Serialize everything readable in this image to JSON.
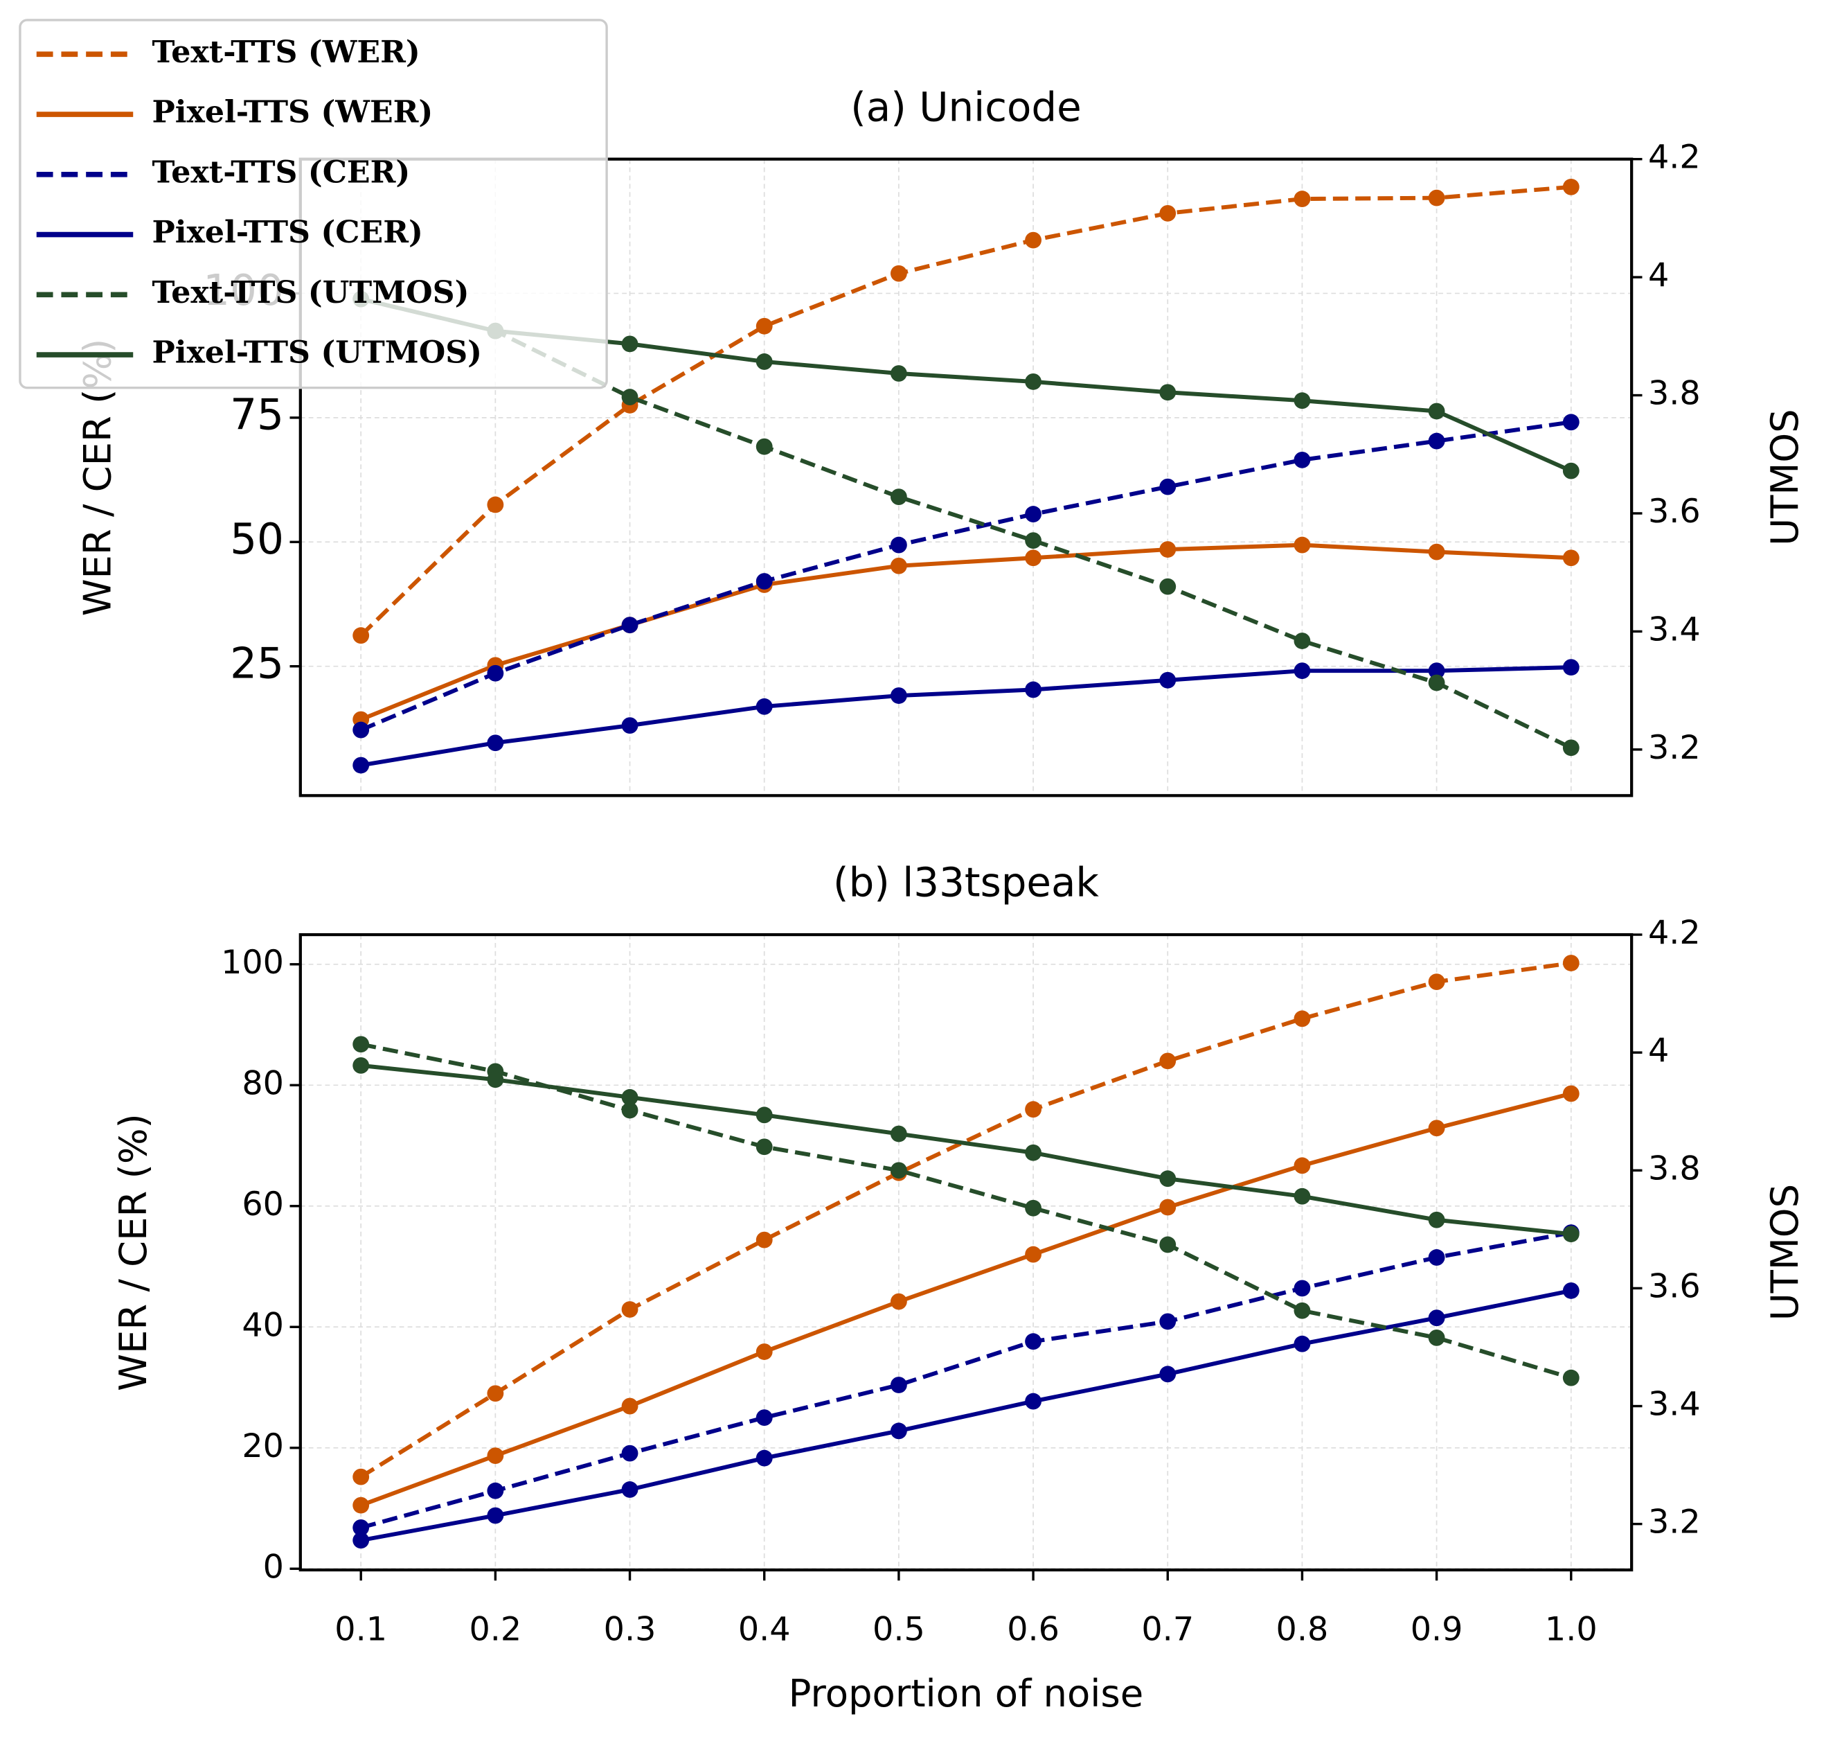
{
  "chart_data": [
    {
      "type": "line",
      "title": "(a) Unicode",
      "ylabel": "WER / CER (%)",
      "y2label": "UTMOS",
      "x": [
        0.1,
        0.2,
        0.3,
        0.4,
        0.5,
        0.6,
        0.7,
        0.8,
        0.9,
        1.0
      ],
      "xlim": [
        0.055,
        1.045
      ],
      "ylim": [
        -1,
        127
      ],
      "yticks": [
        25,
        50,
        75,
        100
      ],
      "y2lim": [
        3.122,
        4.2
      ],
      "y2ticks": [
        3.2,
        3.4,
        3.6,
        3.8,
        4.0,
        4.2
      ],
      "grid": true,
      "legend": "upper left",
      "series": [
        {
          "name": "Text-TTS (WER)",
          "color": "#cc5500",
          "linestyle": "dashed",
          "values": [
            31.2,
            57.5,
            77.5,
            93.4,
            104.0,
            110.7,
            116.1,
            119.0,
            119.2,
            121.4
          ]
        },
        {
          "name": "Pixel-TTS (WER)",
          "color": "#cc5500",
          "linestyle": "solid",
          "values": [
            14.3,
            25.2,
            33.3,
            41.4,
            45.2,
            46.8,
            48.5,
            49.4,
            48.0,
            46.8
          ]
        },
        {
          "name": "Text-TTS (CER)",
          "color": "#00008b",
          "linestyle": "dashed",
          "values": [
            12.2,
            23.6,
            33.3,
            42.1,
            49.4,
            55.6,
            61.1,
            66.5,
            70.3,
            74.1
          ]
        },
        {
          "name": "Pixel-TTS (CER)",
          "color": "#00008b",
          "linestyle": "solid",
          "values": [
            5.1,
            9.6,
            13.1,
            16.9,
            19.1,
            20.3,
            22.2,
            24.1,
            24.1,
            24.8
          ]
        },
        {
          "name": "Text-TTS (UTMOS)",
          "color": "#264d2a",
          "linestyle": "dashed",
          "axis": "y2",
          "values": [
            3.963,
            3.909,
            3.797,
            3.713,
            3.628,
            3.554,
            3.476,
            3.384,
            3.313,
            3.203
          ]
        },
        {
          "name": "Pixel-TTS (UTMOS)",
          "color": "#264d2a",
          "linestyle": "solid",
          "axis": "y2",
          "values": [
            3.963,
            3.909,
            3.887,
            3.857,
            3.837,
            3.823,
            3.805,
            3.791,
            3.773,
            3.672
          ]
        }
      ]
    },
    {
      "type": "line",
      "title": "(b) l33tspeak",
      "ylabel": "WER / CER (%)",
      "y2label": "UTMOS",
      "xlabel": "Proportion of noise",
      "x": [
        0.1,
        0.2,
        0.3,
        0.4,
        0.5,
        0.6,
        0.7,
        0.8,
        0.9,
        1.0
      ],
      "xlim": [
        0.055,
        1.045
      ],
      "xticks": [
        0.1,
        0.2,
        0.3,
        0.4,
        0.5,
        0.6,
        0.7,
        0.8,
        0.9,
        {
          "value": 1.0,
          "label": "1.0"
        }
      ],
      "ylim": [
        -0.2,
        104.9
      ],
      "yticks": [
        0,
        20,
        40,
        60,
        80,
        100
      ],
      "y2lim": [
        3.122,
        4.2
      ],
      "y2ticks": [
        3.2,
        3.4,
        3.6,
        3.8,
        4.0,
        4.2
      ],
      "grid": true,
      "series": [
        {
          "color": "#cc5500",
          "linestyle": "dashed",
          "values": [
            15.2,
            29.0,
            42.9,
            54.4,
            65.5,
            76.0,
            84.0,
            91.0,
            97.1,
            100.2
          ]
        },
        {
          "color": "#cc5500",
          "linestyle": "solid",
          "values": [
            10.5,
            18.7,
            26.9,
            35.9,
            44.2,
            52.0,
            59.8,
            66.7,
            72.9,
            78.6
          ]
        },
        {
          "color": "#00008b",
          "linestyle": "dashed",
          "values": [
            6.8,
            12.9,
            19.1,
            25.0,
            30.4,
            37.6,
            40.9,
            46.4,
            51.5,
            55.6
          ]
        },
        {
          "color": "#00008b",
          "linestyle": "solid",
          "values": [
            4.7,
            8.8,
            13.1,
            18.3,
            22.8,
            27.7,
            32.2,
            37.2,
            41.5,
            46.0
          ]
        },
        {
          "color": "#264d2a",
          "linestyle": "dashed",
          "axis": "y2",
          "values": [
            4.014,
            3.968,
            3.902,
            3.84,
            3.8,
            3.736,
            3.674,
            3.562,
            3.516,
            3.448
          ]
        },
        {
          "color": "#264d2a",
          "linestyle": "solid",
          "axis": "y2",
          "values": [
            3.978,
            3.954,
            3.924,
            3.894,
            3.862,
            3.83,
            3.786,
            3.756,
            3.716,
            3.692
          ]
        }
      ]
    }
  ]
}
